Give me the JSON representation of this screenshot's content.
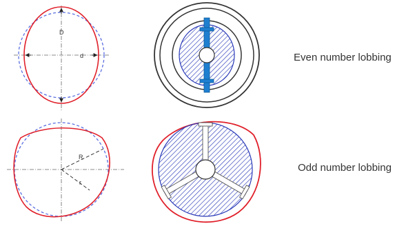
{
  "captions": {
    "even": "Even number lobbing",
    "odd": "Odd number lobbing"
  },
  "labels": {
    "even_vertical": "D",
    "even_horizontal": "d",
    "odd_outer": "R",
    "odd_inner": "r"
  },
  "colors": {
    "profile_red": "#e0202a",
    "reference_blue": "#5a6ee0",
    "hatch_blue": "#2a3ab8",
    "bar_blue": "#1e7fd0",
    "outline": "#333333"
  }
}
